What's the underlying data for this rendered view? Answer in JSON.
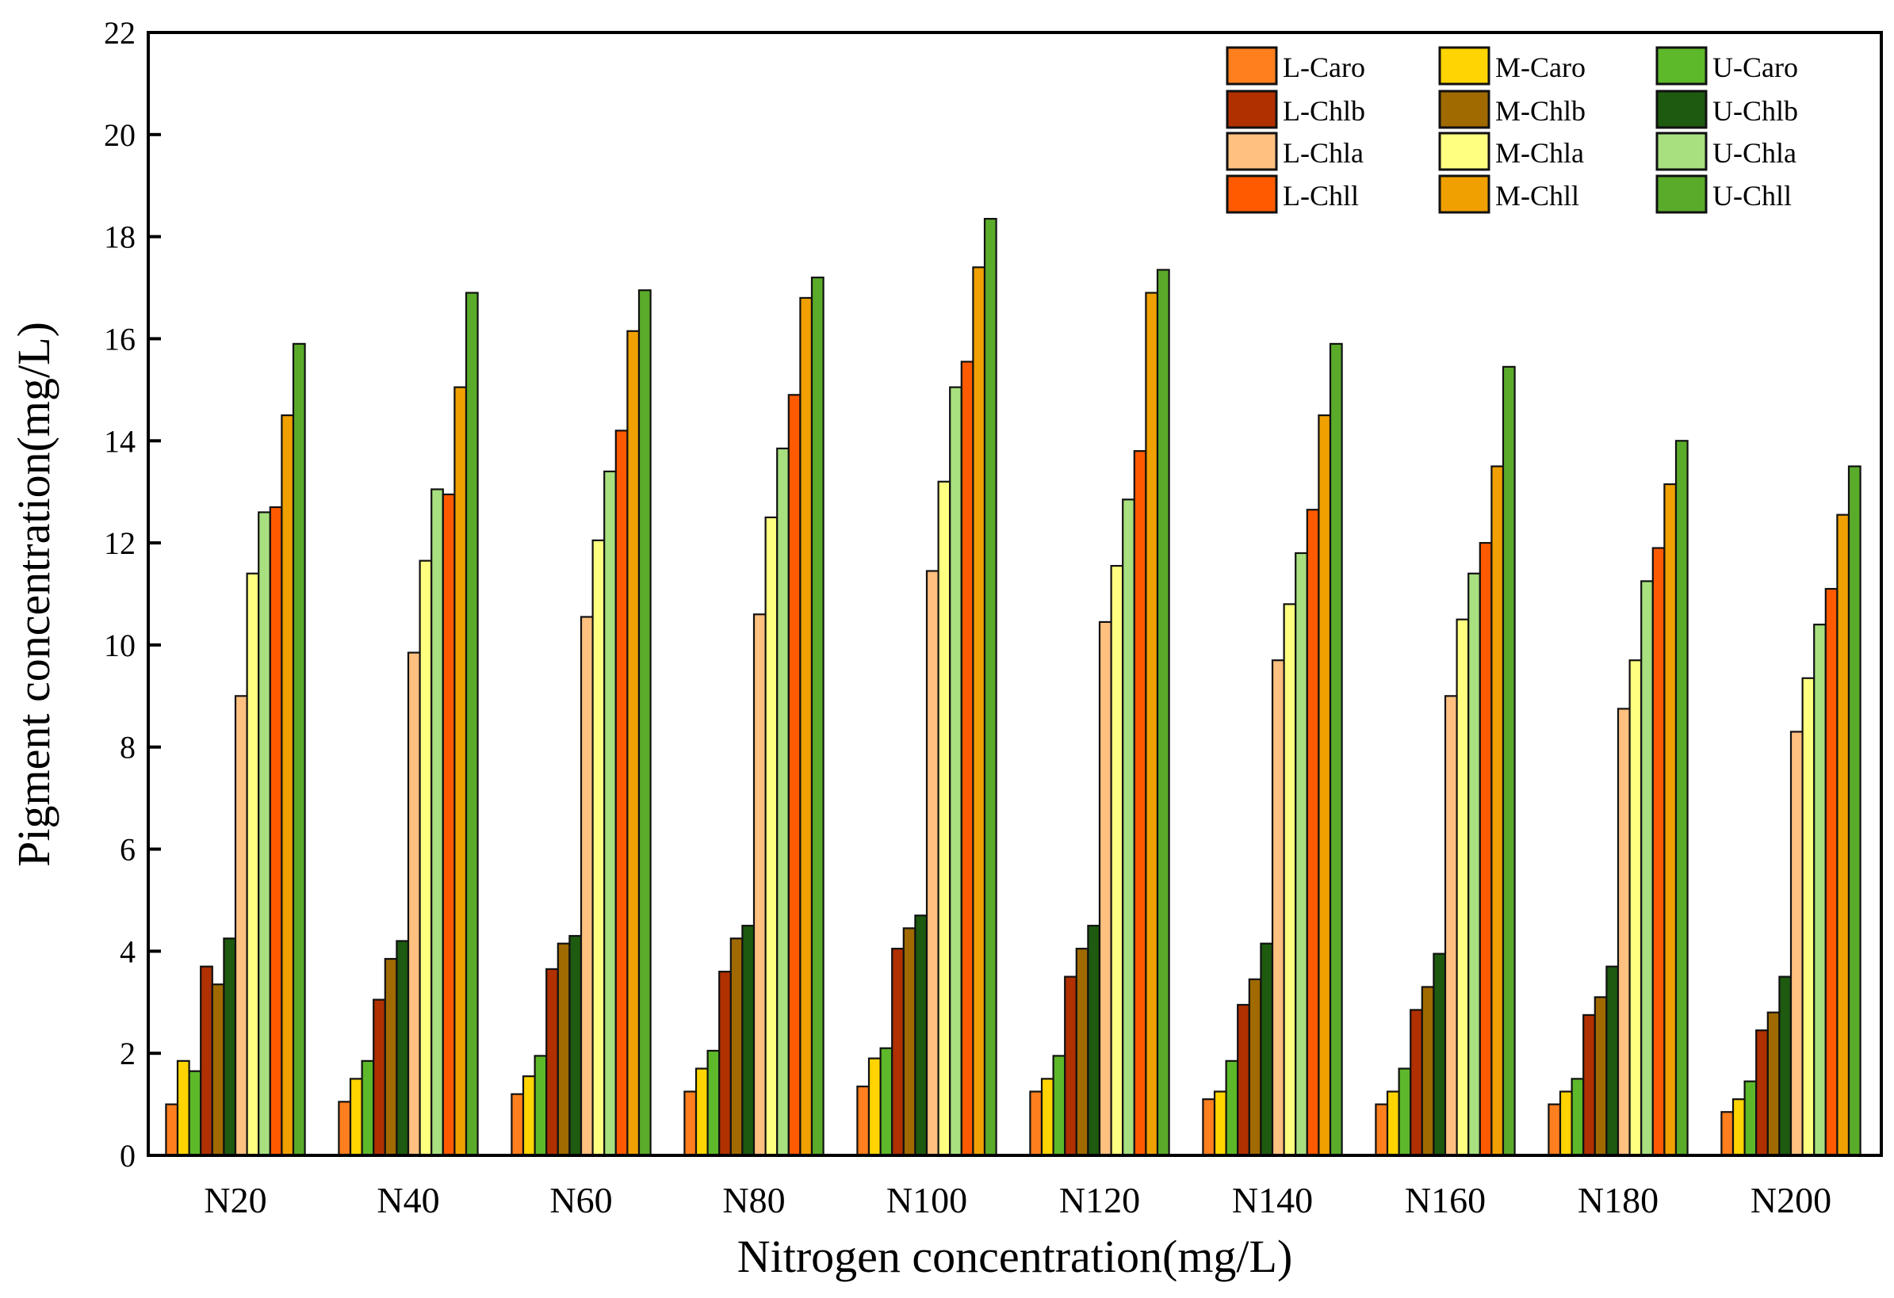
{
  "chart_data": {
    "type": "bar",
    "title": "",
    "xlabel": "Nitrogen concentration(mg/L)",
    "ylabel": "Pigment concentration(mg/L)",
    "ylim": [
      0,
      22
    ],
    "yticks": [
      0,
      2,
      4,
      6,
      8,
      10,
      12,
      14,
      16,
      18,
      20,
      22
    ],
    "grid": false,
    "legend_position": "top-right",
    "categories": [
      "N20",
      "N40",
      "N60",
      "N80",
      "N100",
      "N120",
      "N140",
      "N160",
      "N180",
      "N200"
    ],
    "series": [
      {
        "name": "L-Caro",
        "color": "#ff7f1e",
        "values": [
          1.0,
          1.05,
          1.2,
          1.25,
          1.35,
          1.25,
          1.1,
          1.0,
          1.0,
          0.85
        ]
      },
      {
        "name": "M-Caro",
        "color": "#ffd400",
        "values": [
          1.85,
          1.5,
          1.55,
          1.7,
          1.9,
          1.5,
          1.25,
          1.25,
          1.25,
          1.1
        ]
      },
      {
        "name": "U-Caro",
        "color": "#5db82a",
        "values": [
          1.65,
          1.85,
          1.95,
          2.05,
          2.1,
          1.95,
          1.85,
          1.7,
          1.5,
          1.45
        ]
      },
      {
        "name": "L-Chlb",
        "color": "#b03000",
        "values": [
          3.7,
          3.05,
          3.65,
          3.6,
          4.05,
          3.5,
          2.95,
          2.85,
          2.75,
          2.45
        ]
      },
      {
        "name": "M-Chlb",
        "color": "#a06a00",
        "values": [
          3.35,
          3.85,
          4.15,
          4.25,
          4.45,
          4.05,
          3.45,
          3.3,
          3.1,
          2.8
        ]
      },
      {
        "name": "U-Chlb",
        "color": "#1e5a10",
        "values": [
          4.25,
          4.2,
          4.3,
          4.5,
          4.7,
          4.5,
          4.15,
          3.95,
          3.7,
          3.5
        ]
      },
      {
        "name": "L-Chla",
        "color": "#ffc080",
        "values": [
          9.0,
          9.85,
          10.55,
          10.6,
          11.45,
          10.45,
          9.7,
          9.0,
          8.75,
          8.3
        ]
      },
      {
        "name": "M-Chla",
        "color": "#ffff80",
        "values": [
          11.4,
          11.65,
          12.05,
          12.5,
          13.2,
          11.55,
          10.8,
          10.5,
          9.7,
          9.35
        ]
      },
      {
        "name": "U-Chla",
        "color": "#a8e080",
        "values": [
          12.6,
          13.05,
          13.4,
          13.85,
          15.05,
          12.85,
          11.8,
          11.4,
          11.25,
          10.4
        ]
      },
      {
        "name": "L-Chll",
        "color": "#ff5a00",
        "values": [
          12.7,
          12.95,
          14.2,
          14.9,
          15.55,
          13.8,
          12.65,
          12.0,
          11.9,
          11.1
        ]
      },
      {
        "name": "M-Chll",
        "color": "#f0a000",
        "values": [
          14.5,
          15.05,
          16.15,
          16.8,
          17.4,
          16.9,
          14.5,
          13.5,
          13.15,
          12.55
        ]
      },
      {
        "name": "U-Chll",
        "color": "#5aab2a",
        "values": [
          15.9,
          16.9,
          16.95,
          17.2,
          18.35,
          17.35,
          15.9,
          15.45,
          14.0,
          13.5
        ]
      }
    ]
  }
}
